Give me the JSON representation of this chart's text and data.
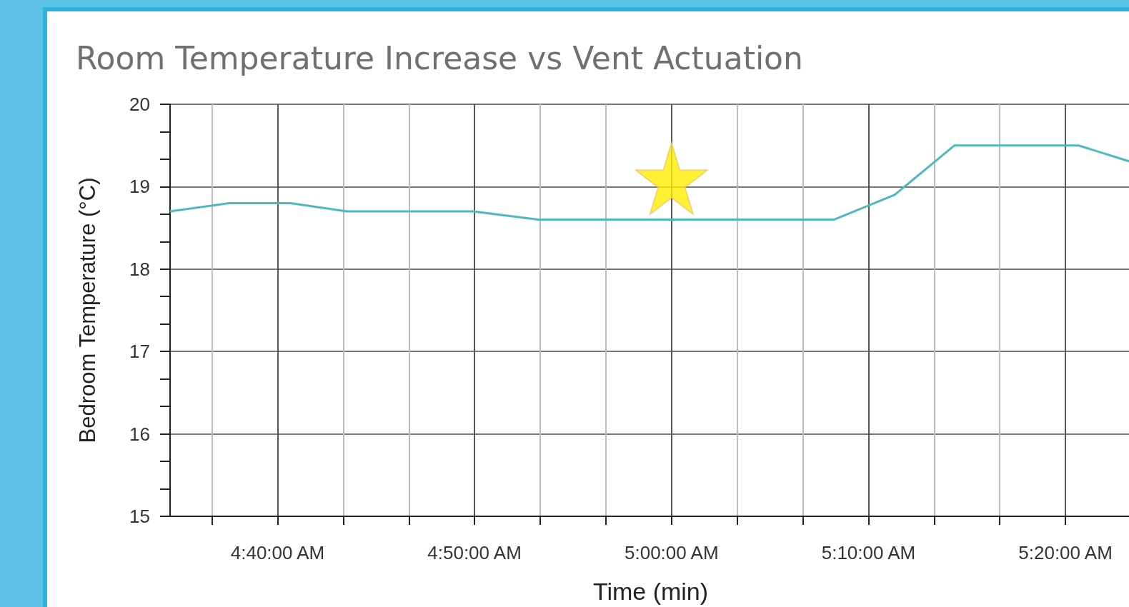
{
  "chart_data": {
    "type": "line",
    "title": "Room Temperature Increase vs Vent Actuation",
    "xlabel": "Time (min)",
    "ylabel": "Bedroom Temperature (°C)",
    "xlim": [
      4.5757,
      5.3889
    ],
    "xticks": [
      {
        "value": 4.6111,
        "label": null
      },
      {
        "value": 4.6667,
        "label": "4:40:00 AM"
      },
      {
        "value": 4.7222,
        "label": null
      },
      {
        "value": 4.7778,
        "label": null
      },
      {
        "value": 4.8333,
        "label": "4:50:00 AM"
      },
      {
        "value": 4.8889,
        "label": null
      },
      {
        "value": 4.9444,
        "label": null
      },
      {
        "value": 5.0,
        "label": "5:00:00 AM"
      },
      {
        "value": 5.0556,
        "label": null
      },
      {
        "value": 5.1111,
        "label": null
      },
      {
        "value": 5.1667,
        "label": "5:10:00 AM"
      },
      {
        "value": 5.2222,
        "label": null
      },
      {
        "value": 5.2778,
        "label": null
      },
      {
        "value": 5.3333,
        "label": "5:20:00 AM"
      },
      {
        "value": 5.3889,
        "label": null
      }
    ],
    "ylim": [
      15,
      20
    ],
    "yticks": [
      15,
      {
        "value": 15.333,
        "label": null
      },
      {
        "value": 15.667,
        "label": null
      },
      16,
      {
        "value": 16.333,
        "label": null
      },
      {
        "value": 16.667,
        "label": null
      },
      17,
      {
        "value": 17.333,
        "label": null
      },
      {
        "value": 17.667,
        "label": null
      },
      18,
      {
        "value": 18.333,
        "label": null
      },
      {
        "value": 18.667,
        "label": null
      },
      19,
      {
        "value": 19.333,
        "label": null
      },
      {
        "value": 19.667,
        "label": null
      },
      20
    ],
    "grid": true,
    "marker": "none",
    "line_style": "solid",
    "series": [
      {
        "color": "#4db8bf",
        "x": [
          4.5757,
          4.6258,
          4.6777,
          4.7253,
          4.8321,
          4.8871,
          5.1374,
          5.1887,
          5.2394,
          5.3444,
          5.3889
        ],
        "values": [
          18.7,
          18.8,
          18.8,
          18.7,
          18.7,
          18.6,
          18.6,
          18.9,
          19.5,
          19.5,
          19.3
        ]
      },
      {
        "type": "scatter",
        "marker": "star",
        "color": "#ffee00",
        "x": [
          5.0
        ],
        "values": [
          19.1
        ]
      }
    ]
  }
}
